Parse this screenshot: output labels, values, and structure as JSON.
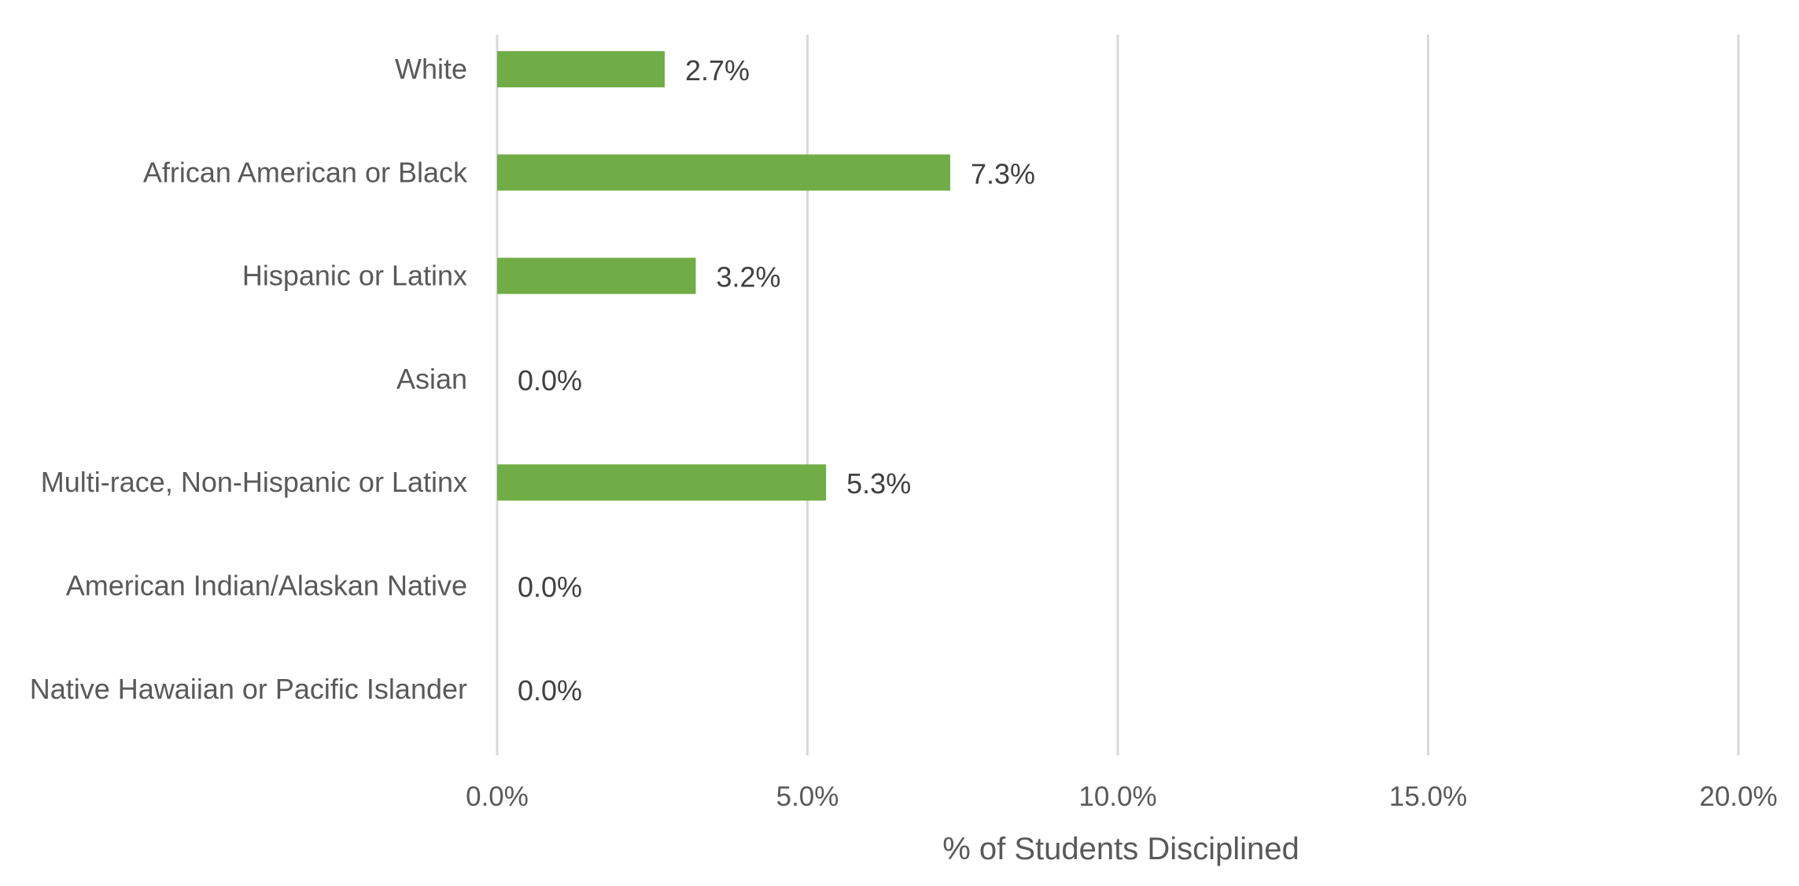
{
  "chart_data": {
    "type": "bar",
    "orientation": "horizontal",
    "categories": [
      "White",
      "African American or Black",
      "Hispanic or Latinx",
      "Asian",
      "Multi-race, Non-Hispanic or Latinx",
      "American Indian/Alaskan Native",
      "Native Hawaiian or Pacific Islander"
    ],
    "values": [
      2.7,
      7.3,
      3.2,
      0.0,
      5.3,
      0.0,
      0.0
    ],
    "data_labels": [
      "2.7%",
      "7.3%",
      "3.2%",
      "0.0%",
      "5.3%",
      "0.0%",
      "0.0%"
    ],
    "title": "",
    "xlabel": "% of Students Disciplined",
    "ylabel": "",
    "xlim": [
      0,
      20
    ],
    "xticks": [
      0,
      5,
      10,
      15,
      20
    ],
    "xtick_labels": [
      "0.0%",
      "5.0%",
      "10.0%",
      "15.0%",
      "20.0%"
    ],
    "grid": "vertical",
    "legend": "none",
    "colors": {
      "bar": "#70AD47",
      "grid": "#D9D9D9",
      "text": "#595959",
      "data_label": "#404040"
    }
  }
}
